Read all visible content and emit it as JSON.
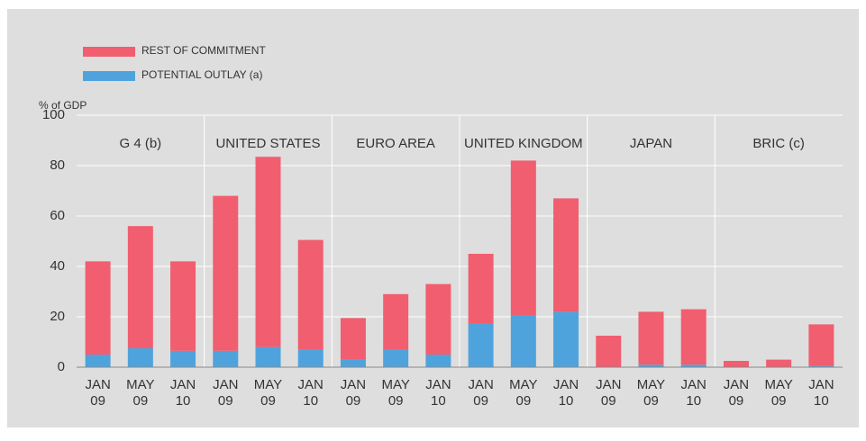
{
  "chart_data": {
    "type": "stacked-bar",
    "y_label": "% of GDP",
    "groups": [
      "G 4 (b)",
      "UNITED STATES",
      "EURO AREA",
      "UNITED KINGDOM",
      "JAPAN",
      "BRIC (c)"
    ],
    "categories": [
      [
        "JAN",
        "09"
      ],
      [
        "MAY",
        "09"
      ],
      [
        "JAN",
        "10"
      ],
      [
        "JAN",
        "09"
      ],
      [
        "MAY",
        "09"
      ],
      [
        "JAN",
        "10"
      ],
      [
        "JAN",
        "09"
      ],
      [
        "MAY",
        "09"
      ],
      [
        "JAN",
        "10"
      ],
      [
        "JAN",
        "09"
      ],
      [
        "MAY",
        "09"
      ],
      [
        "JAN",
        "10"
      ],
      [
        "JAN",
        "09"
      ],
      [
        "MAY",
        "09"
      ],
      [
        "JAN",
        "10"
      ],
      [
        "JAN",
        "09"
      ],
      [
        "MAY",
        "09"
      ],
      [
        "JAN",
        "10"
      ]
    ],
    "series": [
      {
        "name": "POTENTIAL OUTLAY (a)",
        "color": "#4fa3dc",
        "values": [
          5,
          7.5,
          6.5,
          6.5,
          8,
          7,
          3,
          7,
          5,
          17.5,
          20.5,
          22,
          0,
          1,
          1,
          0,
          0,
          0.5
        ]
      },
      {
        "name": "REST OF COMMITMENT",
        "color": "#f15e6f",
        "values": [
          37,
          48.5,
          35.5,
          61.5,
          75.5,
          43.5,
          16.5,
          22,
          28,
          27.5,
          61.5,
          45,
          12.5,
          21,
          22,
          2.5,
          3,
          16.5
        ]
      }
    ],
    "ylim": [
      0,
      100
    ],
    "yticks": [
      0,
      20,
      40,
      60,
      80,
      100
    ],
    "grid": true
  }
}
